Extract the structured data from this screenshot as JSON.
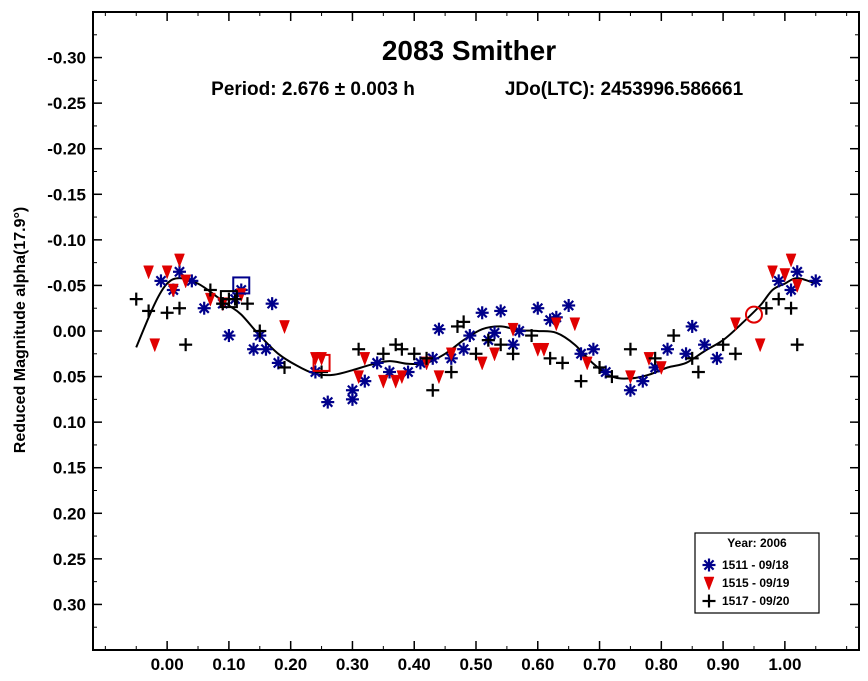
{
  "chart_data": {
    "type": "scatter",
    "title": "2083 Smither",
    "subtitle_period": "Period: 2.676 ± 0.003 h",
    "subtitle_epoch": "JDo(LTC): 2453996.586661",
    "xlabel": "",
    "ylabel": "Reduced Magnitude alpha(17.9°)",
    "xlim": [
      -0.12,
      1.12
    ],
    "ylim": [
      -0.35,
      0.35
    ],
    "y_inverted": true,
    "x_ticks": [
      "0.00",
      "0.10",
      "0.20",
      "0.30",
      "0.40",
      "0.50",
      "0.60",
      "0.70",
      "0.80",
      "0.90",
      "1.00"
    ],
    "x_tick_values": [
      0,
      0.1,
      0.2,
      0.3,
      0.4,
      0.5,
      0.6,
      0.7,
      0.8,
      0.9,
      1.0
    ],
    "y_ticks": [
      "-0.30",
      "-0.25",
      "-0.20",
      "-0.15",
      "-0.10",
      "-0.05",
      "0.00",
      "0.05",
      "0.10",
      "0.15",
      "0.20",
      "0.25",
      "0.30"
    ],
    "y_tick_values": [
      -0.3,
      -0.25,
      -0.2,
      -0.15,
      -0.1,
      -0.05,
      0.0,
      0.05,
      0.1,
      0.15,
      0.2,
      0.25,
      0.3
    ],
    "legend": {
      "title": "Year: 2006",
      "position": "bottom-right"
    },
    "series": [
      {
        "name": "1511 - 09/18",
        "marker": "asterisk",
        "color": "#00008b",
        "x": [
          -0.01,
          0.01,
          0.02,
          0.04,
          0.06,
          0.09,
          0.1,
          0.11,
          0.12,
          0.14,
          0.15,
          0.16,
          0.17,
          0.18,
          0.24,
          0.26,
          0.3,
          0.3,
          0.32,
          0.34,
          0.36,
          0.39,
          0.41,
          0.43,
          0.44,
          0.46,
          0.48,
          0.49,
          0.51,
          0.52,
          0.53,
          0.54,
          0.56,
          0.57,
          0.6,
          0.62,
          0.63,
          0.65,
          0.67,
          0.69,
          0.71,
          0.75,
          0.77,
          0.79,
          0.81,
          0.84,
          0.85,
          0.87,
          0.89,
          0.99,
          1.01,
          1.02,
          1.05
        ],
        "y": [
          -0.055,
          -0.045,
          -0.065,
          -0.055,
          -0.025,
          -0.03,
          0.005,
          -0.035,
          -0.045,
          0.02,
          0.005,
          0.02,
          -0.03,
          0.035,
          0.045,
          0.078,
          0.075,
          0.065,
          0.055,
          0.035,
          0.045,
          0.045,
          0.035,
          0.03,
          -0.002,
          0.03,
          0.02,
          0.005,
          -0.02,
          0.01,
          0.002,
          -0.022,
          0.015,
          0.0,
          -0.025,
          -0.012,
          -0.015,
          -0.028,
          0.025,
          0.02,
          0.045,
          0.065,
          0.055,
          0.04,
          0.02,
          0.025,
          -0.005,
          0.015,
          0.03,
          -0.055,
          -0.045,
          -0.065,
          -0.055
        ]
      },
      {
        "name": "1515 - 09/19",
        "marker": "triangle-down",
        "color": "#e00000",
        "x": [
          -0.03,
          -0.02,
          0.0,
          0.01,
          0.02,
          0.03,
          0.07,
          0.09,
          0.12,
          0.19,
          0.24,
          0.25,
          0.31,
          0.32,
          0.35,
          0.37,
          0.38,
          0.42,
          0.44,
          0.46,
          0.51,
          0.53,
          0.56,
          0.6,
          0.61,
          0.63,
          0.66,
          0.68,
          0.75,
          0.78,
          0.8,
          0.92,
          0.96,
          0.98,
          1.0,
          1.01,
          1.02
        ],
        "y": [
          -0.065,
          0.015,
          -0.065,
          -0.045,
          -0.078,
          -0.055,
          -0.035,
          -0.03,
          -0.04,
          -0.005,
          0.03,
          0.03,
          0.05,
          0.03,
          0.055,
          0.055,
          0.05,
          0.035,
          0.05,
          0.025,
          0.035,
          0.025,
          -0.002,
          0.02,
          0.02,
          -0.008,
          -0.008,
          0.035,
          0.05,
          0.03,
          0.04,
          -0.008,
          0.015,
          -0.065,
          -0.062,
          -0.078,
          -0.05
        ]
      },
      {
        "name": "1517 - 09/20",
        "marker": "plus",
        "color": "#000000",
        "x": [
          -0.05,
          -0.03,
          0.0,
          0.02,
          0.03,
          0.07,
          0.09,
          0.1,
          0.11,
          0.13,
          0.15,
          0.19,
          0.25,
          0.31,
          0.35,
          0.37,
          0.38,
          0.4,
          0.42,
          0.43,
          0.46,
          0.47,
          0.48,
          0.5,
          0.52,
          0.54,
          0.56,
          0.59,
          0.62,
          0.64,
          0.67,
          0.7,
          0.72,
          0.75,
          0.79,
          0.82,
          0.85,
          0.86,
          0.9,
          0.92,
          0.97,
          0.99,
          1.01,
          1.02
        ],
        "y": [
          -0.035,
          -0.022,
          -0.02,
          -0.025,
          0.015,
          -0.045,
          -0.03,
          -0.035,
          -0.035,
          -0.03,
          0.0,
          0.04,
          0.045,
          0.02,
          0.025,
          0.015,
          0.02,
          0.025,
          0.03,
          0.065,
          0.045,
          -0.005,
          -0.01,
          0.025,
          0.01,
          0.015,
          0.025,
          0.005,
          0.03,
          0.035,
          0.055,
          0.04,
          0.05,
          0.02,
          0.03,
          0.005,
          0.03,
          0.045,
          0.015,
          0.025,
          -0.025,
          -0.035,
          -0.025,
          0.015
        ]
      }
    ],
    "fit_curve": {
      "x": [
        -0.05,
        -0.02,
        0.0,
        0.02,
        0.05,
        0.08,
        0.1,
        0.12,
        0.15,
        0.18,
        0.21,
        0.24,
        0.27,
        0.3,
        0.33,
        0.36,
        0.39,
        0.42,
        0.45,
        0.48,
        0.51,
        0.54,
        0.57,
        0.6,
        0.63,
        0.66,
        0.69,
        0.72,
        0.75,
        0.78,
        0.81,
        0.84,
        0.87,
        0.9,
        0.93,
        0.96,
        0.98,
        1.0,
        1.02,
        1.05
      ],
      "y": [
        0.018,
        -0.03,
        -0.052,
        -0.058,
        -0.052,
        -0.038,
        -0.028,
        -0.018,
        0.005,
        0.025,
        0.038,
        0.047,
        0.048,
        0.043,
        0.037,
        0.033,
        0.036,
        0.035,
        0.025,
        0.01,
        -0.002,
        -0.005,
        -0.001,
        0.0,
        0.002,
        0.015,
        0.036,
        0.05,
        0.052,
        0.048,
        0.04,
        0.035,
        0.022,
        0.01,
        -0.008,
        -0.028,
        -0.045,
        -0.052,
        -0.058,
        -0.052
      ]
    },
    "highlight_points": [
      {
        "series": "1511 - 09/18",
        "shape": "open-square",
        "x": 0.12,
        "y": -0.05
      },
      {
        "series": "1515 - 09/19",
        "shape": "open-square",
        "x": 0.25,
        "y": 0.035
      },
      {
        "series": "1517 - 09/20",
        "shape": "open-square",
        "x": 0.1,
        "y": -0.035
      },
      {
        "series": "1515 - 09/19",
        "shape": "open-circle",
        "x": 0.95,
        "y": -0.018
      }
    ]
  }
}
